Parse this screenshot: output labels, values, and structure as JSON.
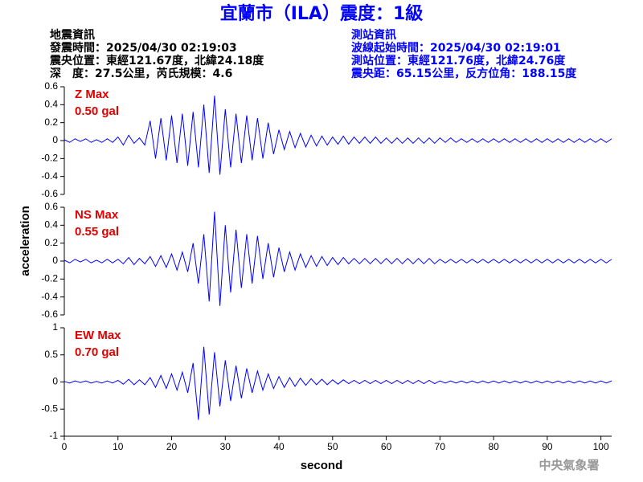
{
  "title": "宜蘭市（ILA）震度：1級",
  "info": {
    "left": [
      "地震資訊",
      "發震時間：2025/04/30 02:19:03",
      "震央位置：東經121.67度，北緯24.18度",
      "深　度：27.5公里，芮氏規模：4.6"
    ],
    "right": [
      "測站資訊",
      "波線起始時間：2025/04/30 02:19:01",
      "測站位置：東經121.76度，北緯24.76度",
      "震央距：65.15公里，反方位角：188.15度"
    ]
  },
  "footer": "中央氣象署",
  "chart_data": [
    {
      "type": "line",
      "color": "#0000ff",
      "annotations": [
        "Z Max",
        "0.50 gal"
      ],
      "xlim": [
        0,
        102
      ],
      "ylim": [
        -0.6,
        0.6
      ],
      "yticks": [
        0.6,
        0.4,
        0.2,
        0,
        -0.2,
        -0.4,
        -0.6
      ],
      "x": [
        0,
        1,
        2,
        3,
        4,
        5,
        6,
        7,
        8,
        9,
        10,
        11,
        12,
        13,
        14,
        15,
        16,
        17,
        18,
        19,
        20,
        21,
        22,
        23,
        24,
        25,
        26,
        27,
        28,
        29,
        30,
        31,
        32,
        33,
        34,
        35,
        36,
        37,
        38,
        39,
        40,
        41,
        42,
        43,
        44,
        45,
        46,
        47,
        48,
        49,
        50,
        51,
        52,
        53,
        54,
        55,
        56,
        57,
        58,
        59,
        60,
        61,
        62,
        63,
        64,
        65,
        66,
        67,
        68,
        69,
        70,
        71,
        72,
        73,
        74,
        75,
        76,
        77,
        78,
        79,
        80,
        81,
        82,
        83,
        84,
        85,
        86,
        87,
        88,
        89,
        90,
        91,
        92,
        93,
        94,
        95,
        96,
        97,
        98,
        99,
        100,
        101,
        102
      ],
      "values": [
        0.01,
        -0.02,
        0.02,
        -0.01,
        0.02,
        -0.02,
        0.01,
        -0.02,
        0.02,
        -0.02,
        0.04,
        -0.05,
        0.06,
        -0.03,
        0.03,
        -0.05,
        0.22,
        -0.2,
        0.25,
        -0.22,
        0.28,
        -0.25,
        0.3,
        -0.28,
        0.32,
        -0.3,
        0.4,
        -0.36,
        0.5,
        -0.38,
        0.35,
        -0.3,
        0.3,
        -0.25,
        0.28,
        -0.22,
        0.25,
        -0.2,
        0.2,
        -0.15,
        0.12,
        -0.1,
        0.1,
        -0.08,
        0.08,
        -0.07,
        0.06,
        -0.06,
        0.05,
        -0.05,
        0.04,
        -0.04,
        0.05,
        -0.04,
        0.04,
        -0.03,
        0.04,
        -0.03,
        0.04,
        -0.03,
        0.03,
        -0.03,
        0.03,
        -0.03,
        0.03,
        -0.03,
        0.03,
        -0.03,
        0.03,
        -0.03,
        0.03,
        -0.02,
        0.03,
        -0.02,
        0.02,
        -0.02,
        0.02,
        -0.02,
        0.02,
        -0.02,
        0.02,
        -0.02,
        0.02,
        -0.02,
        0.02,
        -0.02,
        0.02,
        -0.02,
        0.02,
        -0.02,
        0.02,
        -0.02,
        0.02,
        -0.02,
        0.02,
        -0.02,
        0.02,
        -0.02,
        0.02,
        -0.02,
        0.02,
        -0.02,
        0.02
      ]
    },
    {
      "type": "line",
      "color": "#0000ff",
      "annotations": [
        "NS Max",
        "0.55 gal"
      ],
      "ylabel": "acceleration",
      "xlim": [
        0,
        102
      ],
      "ylim": [
        -0.6,
        0.6
      ],
      "yticks": [
        0.6,
        0.4,
        0.2,
        0,
        -0.2,
        -0.4,
        -0.6
      ],
      "x": [
        0,
        1,
        2,
        3,
        4,
        5,
        6,
        7,
        8,
        9,
        10,
        11,
        12,
        13,
        14,
        15,
        16,
        17,
        18,
        19,
        20,
        21,
        22,
        23,
        24,
        25,
        26,
        27,
        28,
        29,
        30,
        31,
        32,
        33,
        34,
        35,
        36,
        37,
        38,
        39,
        40,
        41,
        42,
        43,
        44,
        45,
        46,
        47,
        48,
        49,
        50,
        51,
        52,
        53,
        54,
        55,
        56,
        57,
        58,
        59,
        60,
        61,
        62,
        63,
        64,
        65,
        66,
        67,
        68,
        69,
        70,
        71,
        72,
        73,
        74,
        75,
        76,
        77,
        78,
        79,
        80,
        81,
        82,
        83,
        84,
        85,
        86,
        87,
        88,
        89,
        90,
        91,
        92,
        93,
        94,
        95,
        96,
        97,
        98,
        99,
        100,
        101,
        102
      ],
      "values": [
        0.01,
        -0.02,
        0.02,
        -0.01,
        0.02,
        -0.02,
        0.01,
        -0.02,
        0.02,
        -0.02,
        0.02,
        -0.03,
        0.04,
        -0.04,
        0.03,
        -0.03,
        0.05,
        -0.06,
        0.06,
        -0.07,
        0.08,
        -0.1,
        0.1,
        -0.12,
        0.2,
        -0.25,
        0.3,
        -0.45,
        0.55,
        -0.5,
        0.4,
        -0.35,
        0.35,
        -0.3,
        0.3,
        -0.25,
        0.28,
        -0.2,
        0.2,
        -0.18,
        0.15,
        -0.12,
        0.1,
        -0.1,
        0.08,
        -0.07,
        0.06,
        -0.06,
        0.05,
        -0.05,
        0.04,
        -0.04,
        0.04,
        -0.03,
        0.03,
        -0.03,
        0.03,
        -0.03,
        0.03,
        -0.03,
        0.03,
        -0.03,
        0.03,
        -0.03,
        0.03,
        -0.03,
        0.03,
        -0.03,
        0.03,
        -0.03,
        0.02,
        -0.02,
        0.02,
        -0.02,
        0.02,
        -0.02,
        0.02,
        -0.02,
        0.02,
        -0.02,
        0.02,
        -0.02,
        0.02,
        -0.02,
        0.02,
        -0.02,
        0.02,
        -0.02,
        0.02,
        -0.02,
        0.02,
        -0.02,
        0.02,
        -0.02,
        0.02,
        -0.02,
        0.02,
        -0.02,
        0.02,
        -0.02,
        0.02,
        -0.02,
        0.02
      ]
    },
    {
      "type": "line",
      "color": "#0000ff",
      "annotations": [
        "EW Max",
        "0.70 gal"
      ],
      "xlabel": "second",
      "xlim": [
        0,
        102
      ],
      "xticks": [
        0,
        10,
        20,
        30,
        40,
        50,
        60,
        70,
        80,
        90,
        100
      ],
      "ylim": [
        -1,
        1
      ],
      "yticks": [
        1,
        0.5,
        0,
        -0.5,
        -1
      ],
      "x": [
        0,
        1,
        2,
        3,
        4,
        5,
        6,
        7,
        8,
        9,
        10,
        11,
        12,
        13,
        14,
        15,
        16,
        17,
        18,
        19,
        20,
        21,
        22,
        23,
        24,
        25,
        26,
        27,
        28,
        29,
        30,
        31,
        32,
        33,
        34,
        35,
        36,
        37,
        38,
        39,
        40,
        41,
        42,
        43,
        44,
        45,
        46,
        47,
        48,
        49,
        50,
        51,
        52,
        53,
        54,
        55,
        56,
        57,
        58,
        59,
        60,
        61,
        62,
        63,
        64,
        65,
        66,
        67,
        68,
        69,
        70,
        71,
        72,
        73,
        74,
        75,
        76,
        77,
        78,
        79,
        80,
        81,
        82,
        83,
        84,
        85,
        86,
        87,
        88,
        89,
        90,
        91,
        92,
        93,
        94,
        95,
        96,
        97,
        98,
        99,
        100,
        101,
        102
      ],
      "values": [
        0.01,
        -0.02,
        0.02,
        -0.01,
        0.02,
        -0.02,
        0.01,
        -0.02,
        0.02,
        -0.02,
        0.03,
        -0.04,
        0.05,
        -0.05,
        0.04,
        -0.05,
        0.08,
        -0.1,
        0.12,
        -0.12,
        0.15,
        -0.15,
        0.18,
        -0.2,
        0.35,
        -0.7,
        0.65,
        -0.6,
        0.55,
        -0.45,
        0.4,
        -0.35,
        0.3,
        -0.3,
        0.25,
        -0.2,
        0.2,
        -0.15,
        0.15,
        -0.12,
        0.1,
        -0.1,
        0.08,
        -0.08,
        0.07,
        -0.06,
        0.06,
        -0.05,
        0.05,
        -0.05,
        0.04,
        -0.04,
        0.04,
        -0.03,
        0.03,
        -0.03,
        0.03,
        -0.03,
        0.03,
        -0.03,
        0.03,
        -0.03,
        0.03,
        -0.03,
        0.03,
        -0.03,
        0.03,
        -0.03,
        0.03,
        -0.03,
        0.02,
        -0.02,
        0.02,
        -0.02,
        0.02,
        -0.02,
        0.02,
        -0.02,
        0.02,
        -0.02,
        0.02,
        -0.02,
        0.02,
        -0.02,
        0.02,
        -0.02,
        0.02,
        -0.02,
        0.02,
        -0.02,
        0.02,
        -0.02,
        0.02,
        -0.02,
        0.02,
        -0.02,
        0.02,
        -0.02,
        0.02,
        -0.02,
        0.02,
        -0.02,
        0.02
      ]
    }
  ]
}
